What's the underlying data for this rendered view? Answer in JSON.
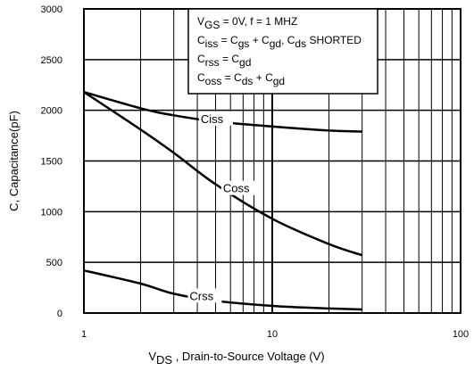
{
  "chart_data": {
    "type": "line",
    "title": "",
    "xlabel": "V",
    "xlabel_sub": "DS",
    "xlabel_rest": " , Drain-to-Source Voltage (V)",
    "ylabel": "C, Capacitance(pF)",
    "x_scale": "log",
    "xlim": [
      1,
      100
    ],
    "ylim": [
      0,
      3000
    ],
    "x_ticks": [
      1,
      10,
      100
    ],
    "y_ticks": [
      0,
      500,
      1000,
      1500,
      2000,
      2500,
      3000
    ],
    "grid": true,
    "series": [
      {
        "name": "Ciss",
        "x": [
          1,
          2,
          3,
          5,
          10,
          20,
          30
        ],
        "y": [
          2180,
          2020,
          1950,
          1890,
          1840,
          1800,
          1790
        ]
      },
      {
        "name": "Coss",
        "x": [
          1,
          2,
          3,
          5,
          10,
          20,
          30
        ],
        "y": [
          2180,
          1810,
          1580,
          1270,
          930,
          680,
          570
        ]
      },
      {
        "name": "Crss",
        "x": [
          1,
          2,
          3,
          5,
          10,
          20,
          30
        ],
        "y": [
          420,
          290,
          190,
          120,
          70,
          45,
          35
        ]
      }
    ],
    "annotation": {
      "lines": [
        [
          {
            "t": "V"
          },
          {
            "t": "GS",
            "sub": true
          },
          {
            "t": " = 0V,     f = 1 MHZ"
          }
        ],
        [
          {
            "t": "C"
          },
          {
            "t": "iss",
            "sub": true
          },
          {
            "t": " = C"
          },
          {
            "t": "gs",
            "sub": true
          },
          {
            "t": " + C"
          },
          {
            "t": "gd",
            "sub": true
          },
          {
            "t": ", C"
          },
          {
            "t": "ds",
            "sub": true
          },
          {
            "t": "  SHORTED"
          }
        ],
        [
          {
            "t": "C"
          },
          {
            "t": "rss",
            "sub": true
          },
          {
            "t": "   = C"
          },
          {
            "t": "gd",
            "sub": true
          }
        ],
        [
          {
            "t": "C"
          },
          {
            "t": "oss",
            "sub": true
          },
          {
            "t": "  = C"
          },
          {
            "t": "ds",
            "sub": true
          },
          {
            "t": " + C"
          },
          {
            "t": "gd",
            "sub": true
          }
        ]
      ]
    }
  }
}
